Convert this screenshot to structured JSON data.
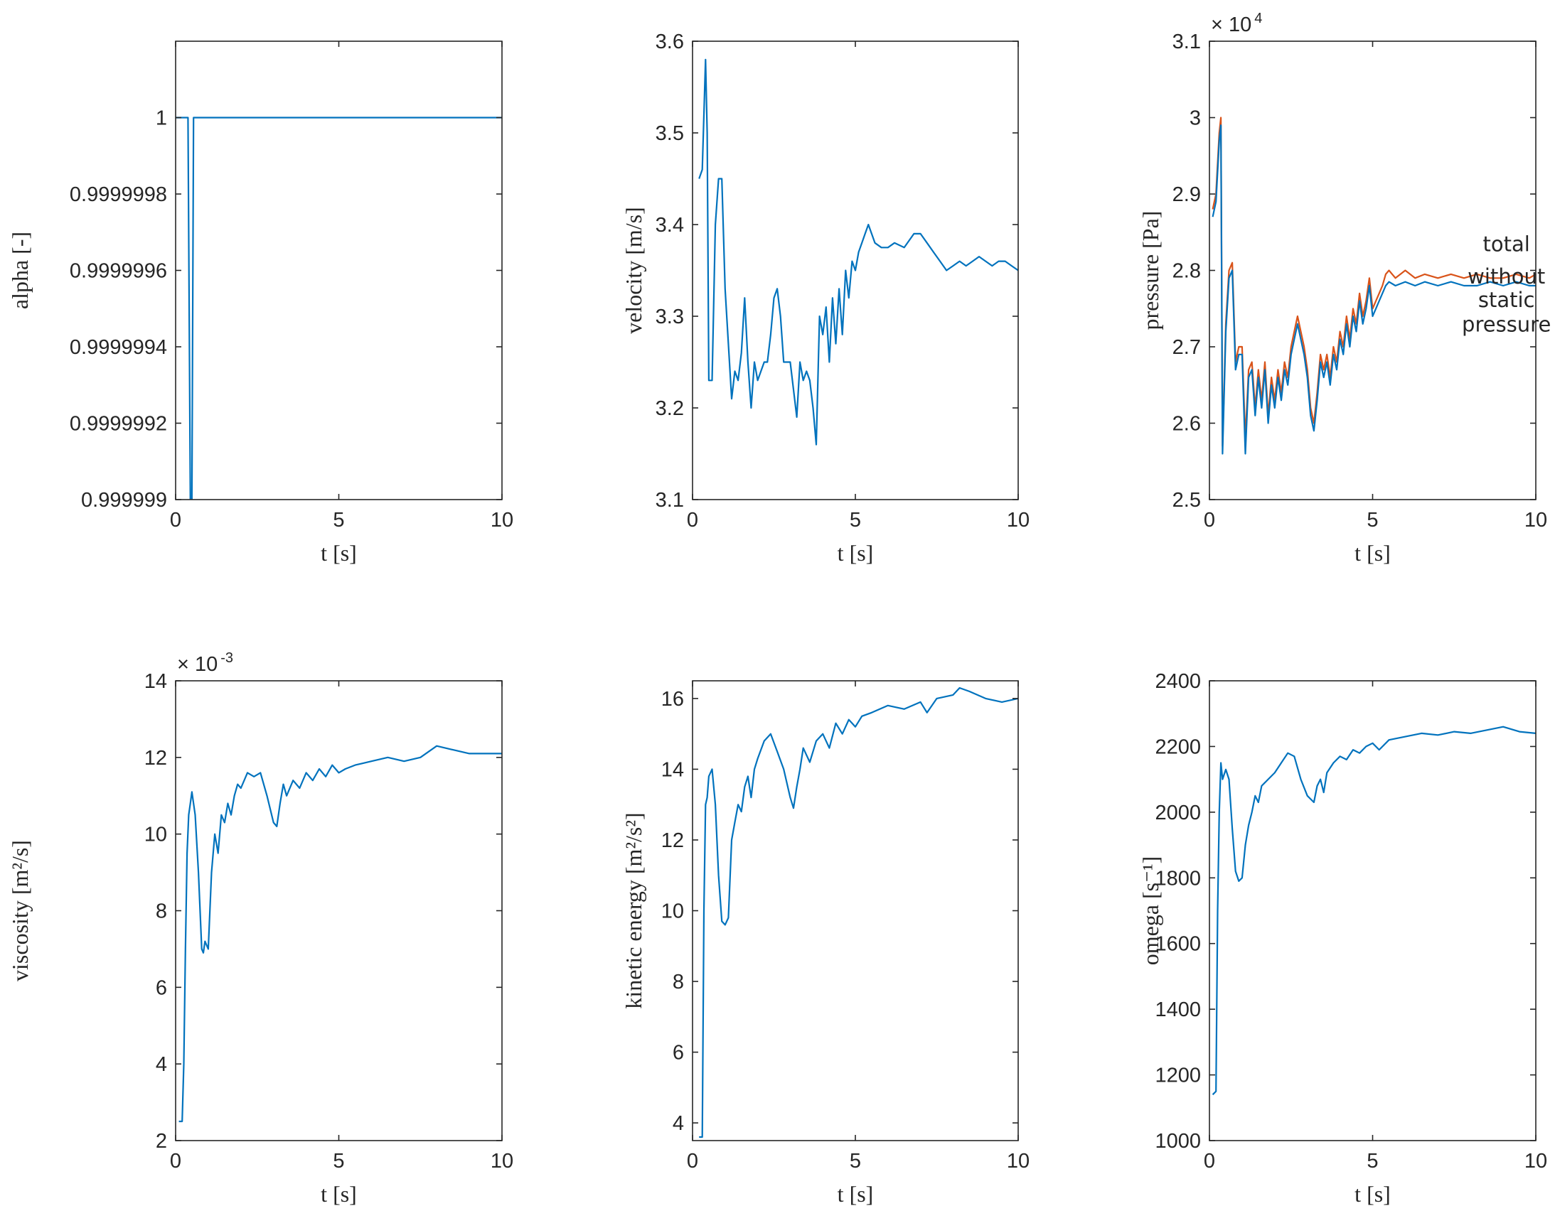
{
  "colors": {
    "series1": "#0072BD",
    "series2": "#D95319",
    "axis": "#262626"
  },
  "chart_data": [
    {
      "type": "line",
      "ylabel": "alpha [-]",
      "xlabel": "t [s]",
      "xlim": [
        0,
        10
      ],
      "ylim": [
        0.999999,
        1.0000002
      ],
      "xticks": [
        0,
        5,
        10
      ],
      "xtick_labels": [
        "0",
        "5",
        "10"
      ],
      "yticks": [
        0.999999,
        0.9999992,
        0.9999994,
        0.9999996,
        0.9999998,
        1
      ],
      "ytick_labels": [
        "0.999999",
        "0.9999992",
        "0.9999994",
        "0.9999996",
        "0.9999998",
        "1"
      ],
      "exponent": "",
      "series": [
        {
          "color": "#0072BD",
          "x": [
            0,
            0.38,
            0.45,
            0.5,
            0.55,
            0.6,
            10
          ],
          "y": [
            1,
            1,
            0.999999,
            0.999999,
            1,
            1,
            1
          ]
        }
      ]
    },
    {
      "type": "line",
      "ylabel": "velocity [m/s]",
      "xlabel": "t [s]",
      "xlim": [
        0,
        10
      ],
      "ylim": [
        3.1,
        3.6
      ],
      "xticks": [
        0,
        5,
        10
      ],
      "xtick_labels": [
        "0",
        "5",
        "10"
      ],
      "yticks": [
        3.1,
        3.2,
        3.3,
        3.4,
        3.5,
        3.6
      ],
      "ytick_labels": [
        "3.1",
        "3.2",
        "3.3",
        "3.4",
        "3.5",
        "3.6"
      ],
      "exponent": "",
      "series": [
        {
          "color": "#0072BD",
          "x": [
            0.2,
            0.3,
            0.35,
            0.4,
            0.45,
            0.5,
            0.55,
            0.6,
            0.7,
            0.8,
            0.9,
            1.0,
            1.1,
            1.2,
            1.3,
            1.4,
            1.5,
            1.6,
            1.7,
            1.8,
            1.9,
            2.0,
            2.1,
            2.2,
            2.3,
            2.4,
            2.5,
            2.6,
            2.7,
            2.8,
            2.9,
            3.0,
            3.1,
            3.2,
            3.3,
            3.4,
            3.5,
            3.6,
            3.7,
            3.8,
            3.9,
            4.0,
            4.1,
            4.2,
            4.3,
            4.4,
            4.5,
            4.6,
            4.7,
            4.8,
            4.9,
            5.0,
            5.1,
            5.2,
            5.3,
            5.4,
            5.5,
            5.6,
            5.8,
            6.0,
            6.2,
            6.5,
            6.8,
            7.0,
            7.2,
            7.4,
            7.6,
            7.8,
            8.0,
            8.2,
            8.4,
            8.6,
            8.8,
            9.0,
            9.2,
            9.4,
            9.6,
            9.8,
            10.0
          ],
          "y": [
            3.45,
            3.46,
            3.52,
            3.58,
            3.5,
            3.23,
            3.23,
            3.23,
            3.4,
            3.45,
            3.45,
            3.33,
            3.27,
            3.21,
            3.24,
            3.23,
            3.26,
            3.32,
            3.25,
            3.2,
            3.25,
            3.23,
            3.24,
            3.25,
            3.25,
            3.28,
            3.32,
            3.33,
            3.3,
            3.25,
            3.25,
            3.25,
            3.22,
            3.19,
            3.25,
            3.23,
            3.24,
            3.23,
            3.2,
            3.16,
            3.3,
            3.28,
            3.31,
            3.25,
            3.32,
            3.27,
            3.33,
            3.28,
            3.35,
            3.32,
            3.36,
            3.35,
            3.37,
            3.38,
            3.39,
            3.4,
            3.39,
            3.38,
            3.375,
            3.375,
            3.38,
            3.375,
            3.39,
            3.39,
            3.38,
            3.37,
            3.36,
            3.35,
            3.355,
            3.36,
            3.355,
            3.36,
            3.365,
            3.36,
            3.355,
            3.36,
            3.36,
            3.355,
            3.35
          ]
        }
      ]
    },
    {
      "type": "line",
      "ylabel": "pressure [Pa]",
      "xlabel": "t [s]",
      "xlim": [
        0,
        10
      ],
      "ylim": [
        2.5,
        3.1
      ],
      "xticks": [
        0,
        5,
        10
      ],
      "xtick_labels": [
        "0",
        "5",
        "10"
      ],
      "yticks": [
        2.5,
        2.6,
        2.7,
        2.8,
        2.9,
        3.0,
        3.1
      ],
      "ytick_labels": [
        "2.5",
        "2.6",
        "2.7",
        "2.8",
        "2.9",
        "3",
        "3.1"
      ],
      "exponent": "× 10",
      "exponent_power": "4",
      "annotations": [
        {
          "text": "total",
          "x": 9.1,
          "y": 2.825
        },
        {
          "text": "without",
          "x": 9.1,
          "y": 2.783
        },
        {
          "text": "static",
          "x": 9.1,
          "y": 2.752
        },
        {
          "text": "pressure",
          "x": 9.1,
          "y": 2.72
        }
      ],
      "series": [
        {
          "name": "total",
          "color": "#D95319",
          "x": [
            0.1,
            0.2,
            0.3,
            0.35,
            0.4,
            0.45,
            0.5,
            0.6,
            0.7,
            0.8,
            0.9,
            1.0,
            1.1,
            1.2,
            1.3,
            1.4,
            1.5,
            1.6,
            1.7,
            1.8,
            1.9,
            2.0,
            2.1,
            2.2,
            2.3,
            2.4,
            2.5,
            2.6,
            2.7,
            2.8,
            2.9,
            3.0,
            3.1,
            3.2,
            3.3,
            3.4,
            3.5,
            3.6,
            3.7,
            3.8,
            3.9,
            4.0,
            4.1,
            4.2,
            4.3,
            4.4,
            4.5,
            4.6,
            4.7,
            4.8,
            4.9,
            5.0,
            5.1,
            5.2,
            5.3,
            5.4,
            5.5,
            5.7,
            6.0,
            6.3,
            6.6,
            7.0,
            7.4,
            7.8,
            8.2,
            8.6,
            9.0,
            9.4,
            9.8,
            10.0
          ],
          "y": [
            2.88,
            2.9,
            2.98,
            3.0,
            2.57,
            2.65,
            2.73,
            2.8,
            2.81,
            2.68,
            2.7,
            2.7,
            2.58,
            2.67,
            2.68,
            2.62,
            2.67,
            2.63,
            2.68,
            2.61,
            2.66,
            2.63,
            2.67,
            2.64,
            2.68,
            2.66,
            2.7,
            2.72,
            2.74,
            2.72,
            2.7,
            2.67,
            2.62,
            2.6,
            2.64,
            2.69,
            2.67,
            2.69,
            2.66,
            2.7,
            2.68,
            2.72,
            2.7,
            2.74,
            2.71,
            2.75,
            2.73,
            2.77,
            2.74,
            2.76,
            2.79,
            2.75,
            2.76,
            2.77,
            2.78,
            2.795,
            2.8,
            2.79,
            2.8,
            2.79,
            2.795,
            2.79,
            2.795,
            2.79,
            2.795,
            2.79,
            2.79,
            2.795,
            2.79,
            2.795
          ]
        },
        {
          "name": "without static pressure",
          "color": "#0072BD",
          "x": [
            0.1,
            0.2,
            0.3,
            0.35,
            0.4,
            0.45,
            0.5,
            0.6,
            0.7,
            0.8,
            0.9,
            1.0,
            1.1,
            1.2,
            1.3,
            1.4,
            1.5,
            1.6,
            1.7,
            1.8,
            1.9,
            2.0,
            2.1,
            2.2,
            2.3,
            2.4,
            2.5,
            2.6,
            2.7,
            2.8,
            2.9,
            3.0,
            3.1,
            3.2,
            3.3,
            3.4,
            3.5,
            3.6,
            3.7,
            3.8,
            3.9,
            4.0,
            4.1,
            4.2,
            4.3,
            4.4,
            4.5,
            4.6,
            4.7,
            4.8,
            4.9,
            5.0,
            5.1,
            5.2,
            5.3,
            5.4,
            5.5,
            5.7,
            6.0,
            6.3,
            6.6,
            7.0,
            7.4,
            7.8,
            8.2,
            8.6,
            9.0,
            9.4,
            9.8,
            10.0
          ],
          "y": [
            2.87,
            2.89,
            2.97,
            2.99,
            2.56,
            2.64,
            2.72,
            2.79,
            2.8,
            2.67,
            2.69,
            2.69,
            2.56,
            2.66,
            2.67,
            2.61,
            2.66,
            2.62,
            2.67,
            2.6,
            2.65,
            2.62,
            2.66,
            2.63,
            2.67,
            2.65,
            2.69,
            2.71,
            2.73,
            2.71,
            2.69,
            2.66,
            2.61,
            2.59,
            2.63,
            2.68,
            2.66,
            2.68,
            2.65,
            2.69,
            2.67,
            2.71,
            2.69,
            2.73,
            2.7,
            2.74,
            2.72,
            2.76,
            2.73,
            2.75,
            2.78,
            2.74,
            2.75,
            2.76,
            2.77,
            2.78,
            2.785,
            2.78,
            2.785,
            2.78,
            2.785,
            2.78,
            2.785,
            2.78,
            2.78,
            2.785,
            2.78,
            2.785,
            2.78,
            2.78
          ]
        }
      ]
    },
    {
      "type": "line",
      "ylabel": "viscosity [m²/s]",
      "xlabel": "t [s]",
      "xlim": [
        0,
        10
      ],
      "ylim": [
        2,
        14
      ],
      "xticks": [
        0,
        5,
        10
      ],
      "xtick_labels": [
        "0",
        "5",
        "10"
      ],
      "yticks": [
        2,
        4,
        6,
        8,
        10,
        12,
        14
      ],
      "ytick_labels": [
        "2",
        "4",
        "6",
        "8",
        "10",
        "12",
        "14"
      ],
      "exponent": "× 10",
      "exponent_power": "-3",
      "series": [
        {
          "color": "#0072BD",
          "x": [
            0.1,
            0.2,
            0.25,
            0.3,
            0.35,
            0.4,
            0.45,
            0.5,
            0.6,
            0.7,
            0.8,
            0.85,
            0.9,
            1.0,
            1.1,
            1.2,
            1.3,
            1.4,
            1.5,
            1.6,
            1.7,
            1.8,
            1.9,
            2.0,
            2.2,
            2.4,
            2.6,
            2.8,
            3.0,
            3.1,
            3.2,
            3.3,
            3.4,
            3.6,
            3.8,
            4.0,
            4.2,
            4.4,
            4.6,
            4.8,
            5.0,
            5.2,
            5.5,
            6.0,
            6.5,
            7.0,
            7.5,
            8.0,
            8.5,
            9.0,
            9.5,
            10.0
          ],
          "y": [
            2.5,
            2.5,
            4.0,
            7.0,
            9.5,
            10.5,
            10.8,
            11.1,
            10.5,
            9.0,
            7.0,
            6.9,
            7.2,
            7.0,
            9.0,
            10.0,
            9.5,
            10.5,
            10.3,
            10.8,
            10.5,
            11.0,
            11.3,
            11.2,
            11.6,
            11.5,
            11.6,
            11.0,
            10.3,
            10.2,
            10.8,
            11.3,
            11.0,
            11.4,
            11.2,
            11.6,
            11.4,
            11.7,
            11.5,
            11.8,
            11.6,
            11.7,
            11.8,
            11.9,
            12.0,
            11.9,
            12.0,
            12.3,
            12.2,
            12.1,
            12.1,
            12.1
          ]
        }
      ]
    },
    {
      "type": "line",
      "ylabel": "kinetic energy [m²/s²]",
      "xlabel": "t [s]",
      "xlim": [
        0,
        10
      ],
      "ylim": [
        3.5,
        16.5
      ],
      "xticks": [
        0,
        5,
        10
      ],
      "xtick_labels": [
        "0",
        "5",
        "10"
      ],
      "yticks": [
        4,
        6,
        8,
        10,
        12,
        14,
        16
      ],
      "ytick_labels": [
        "4",
        "6",
        "8",
        "10",
        "12",
        "14",
        "16"
      ],
      "exponent": "",
      "series": [
        {
          "color": "#0072BD",
          "x": [
            0.2,
            0.3,
            0.35,
            0.4,
            0.45,
            0.5,
            0.6,
            0.7,
            0.8,
            0.9,
            1.0,
            1.1,
            1.2,
            1.3,
            1.4,
            1.5,
            1.6,
            1.7,
            1.8,
            1.9,
            2.0,
            2.2,
            2.4,
            2.6,
            2.8,
            3.0,
            3.1,
            3.2,
            3.3,
            3.4,
            3.6,
            3.8,
            4.0,
            4.2,
            4.4,
            4.6,
            4.8,
            5.0,
            5.2,
            5.5,
            6.0,
            6.5,
            7.0,
            7.2,
            7.5,
            8.0,
            8.2,
            8.5,
            9.0,
            9.5,
            10.0
          ],
          "y": [
            3.6,
            3.6,
            10.0,
            13.0,
            13.2,
            13.8,
            14.0,
            13.0,
            11.0,
            9.7,
            9.6,
            9.8,
            12.0,
            12.5,
            13.0,
            12.8,
            13.5,
            13.8,
            13.2,
            14.0,
            14.3,
            14.8,
            15.0,
            14.5,
            14.0,
            13.2,
            12.9,
            13.5,
            14.0,
            14.6,
            14.2,
            14.8,
            15.0,
            14.6,
            15.3,
            15.0,
            15.4,
            15.2,
            15.5,
            15.6,
            15.8,
            15.7,
            15.9,
            15.6,
            16.0,
            16.1,
            16.3,
            16.2,
            16.0,
            15.9,
            16.0
          ]
        }
      ]
    },
    {
      "type": "line",
      "ylabel": "omega [s⁻¹]",
      "xlabel": "t [s]",
      "xlim": [
        0,
        10
      ],
      "ylim": [
        1000,
        2400
      ],
      "xticks": [
        0,
        5,
        10
      ],
      "xtick_labels": [
        "0",
        "5",
        "10"
      ],
      "yticks": [
        1000,
        1200,
        1400,
        1600,
        1800,
        2000,
        2200,
        2400
      ],
      "ytick_labels": [
        "1000",
        "1200",
        "1400",
        "1600",
        "1800",
        "2000",
        "2200",
        "2400"
      ],
      "exponent": "",
      "series": [
        {
          "color": "#0072BD",
          "x": [
            0.1,
            0.2,
            0.25,
            0.3,
            0.35,
            0.4,
            0.5,
            0.6,
            0.7,
            0.8,
            0.9,
            1.0,
            1.1,
            1.2,
            1.3,
            1.4,
            1.5,
            1.6,
            1.8,
            2.0,
            2.2,
            2.4,
            2.6,
            2.8,
            3.0,
            3.2,
            3.3,
            3.4,
            3.5,
            3.6,
            3.8,
            4.0,
            4.2,
            4.4,
            4.6,
            4.8,
            5.0,
            5.2,
            5.5,
            6.0,
            6.5,
            7.0,
            7.5,
            8.0,
            8.5,
            9.0,
            9.5,
            10.0
          ],
          "y": [
            1140,
            1150,
            1700,
            2000,
            2150,
            2100,
            2130,
            2100,
            1950,
            1820,
            1790,
            1800,
            1900,
            1960,
            2000,
            2050,
            2030,
            2080,
            2100,
            2120,
            2150,
            2180,
            2170,
            2100,
            2050,
            2030,
            2080,
            2100,
            2060,
            2120,
            2150,
            2170,
            2160,
            2190,
            2180,
            2200,
            2210,
            2190,
            2220,
            2230,
            2240,
            2235,
            2245,
            2240,
            2250,
            2260,
            2245,
            2240
          ]
        }
      ]
    }
  ]
}
